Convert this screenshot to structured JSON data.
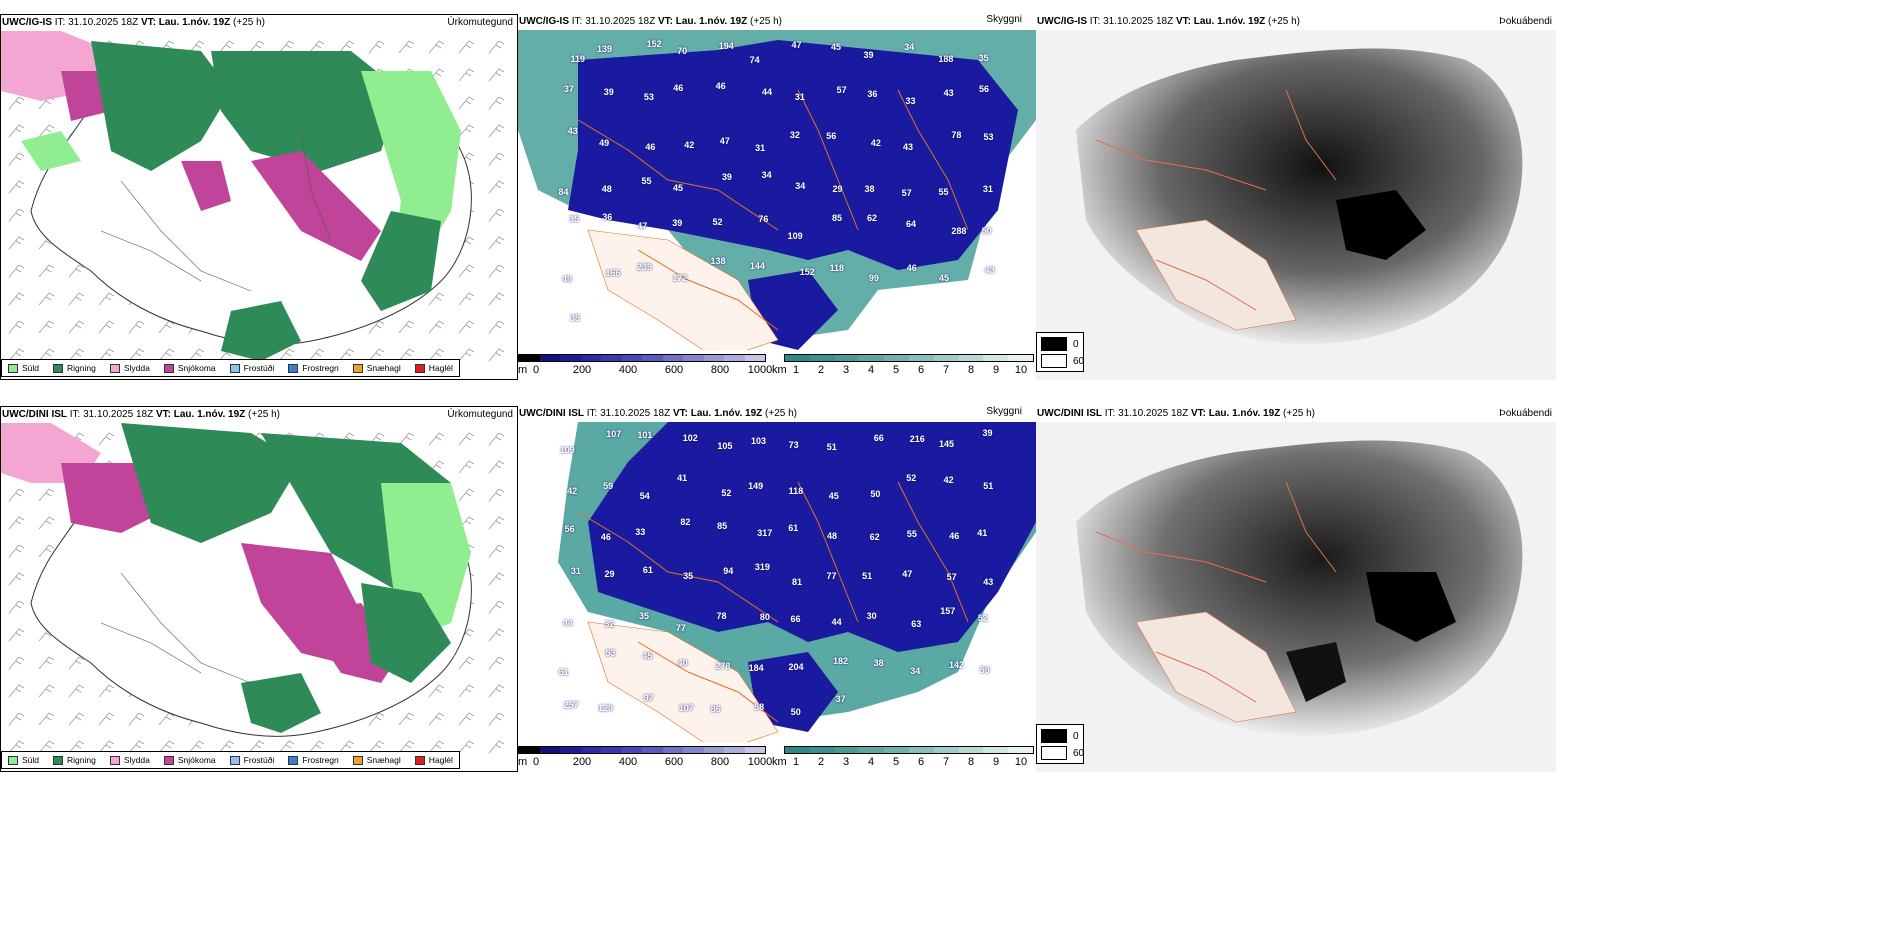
{
  "rows": [
    {
      "model": "UWC/IG-IS",
      "it_label": "IT:",
      "it_value": "31.10.2025 18Z",
      "vt_label": "VT: Lau. 1.nóv. 19Z",
      "lead": "(+25 h)",
      "left_title": "Úrkomutegund",
      "middle_title": "Skyggni",
      "right_title": "Þokuábendi",
      "visibility_labels": [
        "119",
        "139",
        "152",
        "70",
        "194",
        "74",
        "47",
        "45",
        "39",
        "34",
        "188",
        "35",
        "37",
        "39",
        "53",
        "46",
        "46",
        "44",
        "31",
        "57",
        "36",
        "33",
        "43",
        "56",
        "43",
        "49",
        "46",
        "42",
        "47",
        "31",
        "32",
        "56",
        "42",
        "43",
        "78",
        "53",
        "84",
        "48",
        "55",
        "45",
        "39",
        "34",
        "34",
        "29",
        "38",
        "57",
        "55",
        "31",
        "35",
        "36",
        "47",
        "39",
        "52",
        "76",
        "109",
        "85",
        "62",
        "64",
        "288",
        "50",
        "49",
        "166",
        "239",
        "172",
        "138",
        "144",
        "152",
        "118",
        "99",
        "46",
        "45",
        "43",
        "35"
      ]
    },
    {
      "model": "UWC/DINI ISL",
      "it_label": "IT:",
      "it_value": "31.10.2025 18Z",
      "vt_label": "VT: Lau. 1.nóv. 19Z",
      "lead": "(+25 h)",
      "left_title": "Úrkomutegund",
      "middle_title": "Skyggni",
      "right_title": "Þokuábendi",
      "visibility_labels": [
        "109",
        "107",
        "101",
        "102",
        "105",
        "103",
        "73",
        "51",
        "66",
        "216",
        "145",
        "39",
        "42",
        "59",
        "54",
        "41",
        "52",
        "149",
        "118",
        "45",
        "50",
        "52",
        "42",
        "51",
        "56",
        "46",
        "33",
        "82",
        "85",
        "317",
        "61",
        "48",
        "62",
        "55",
        "46",
        "41",
        "31",
        "29",
        "61",
        "35",
        "94",
        "319",
        "81",
        "77",
        "51",
        "47",
        "57",
        "43",
        "44",
        "32",
        "35",
        "77",
        "78",
        "80",
        "66",
        "44",
        "30",
        "63",
        "157",
        "52",
        "61",
        "53",
        "45",
        "40",
        "278",
        "184",
        "204",
        "182",
        "38",
        "34",
        "142",
        "59",
        "257",
        "129",
        "97",
        "107",
        "86",
        "58",
        "50",
        "37"
      ]
    }
  ],
  "precip_legend": [
    {
      "label": "Súld",
      "color": "#90ee90"
    },
    {
      "label": "Rigning",
      "color": "#2e8b57"
    },
    {
      "label": "Slydda",
      "color": "#f4a6d2"
    },
    {
      "label": "Snjókoma",
      "color": "#c0449a"
    },
    {
      "label": "Frostúði",
      "color": "#8fc2f2"
    },
    {
      "label": "Frostregn",
      "color": "#3a7fd0"
    },
    {
      "label": "Snæhagl",
      "color": "#f0a030"
    },
    {
      "label": "Haglél",
      "color": "#e02020"
    }
  ],
  "height_bar": {
    "unit": "m",
    "ticks": [
      "0",
      "200",
      "400",
      "600",
      "800",
      "1000"
    ],
    "colors": [
      "#000000",
      "#12127a",
      "#1c1c96",
      "#2a2aa8",
      "#3838b0",
      "#4848b8",
      "#5a5abf",
      "#7070c6",
      "#8484cc",
      "#9a9ad2",
      "#aeaedb",
      "#c4c4e4"
    ]
  },
  "km_bar": {
    "unit": "km",
    "ticks": [
      "1",
      "2",
      "3",
      "4",
      "5",
      "6",
      "7",
      "8",
      "9",
      "10"
    ],
    "colors": [
      "#2c8a86",
      "#3a928e",
      "#4a9a96",
      "#5ea6a2",
      "#72b2ae",
      "#88bebb",
      "#a0cbc8",
      "#b8d9d6",
      "#d0e6e4",
      "#e8f2f1"
    ]
  },
  "fog_legend": [
    {
      "label": "0",
      "color": "#000000"
    },
    {
      "label": "60",
      "color": "#ffffff"
    }
  ]
}
